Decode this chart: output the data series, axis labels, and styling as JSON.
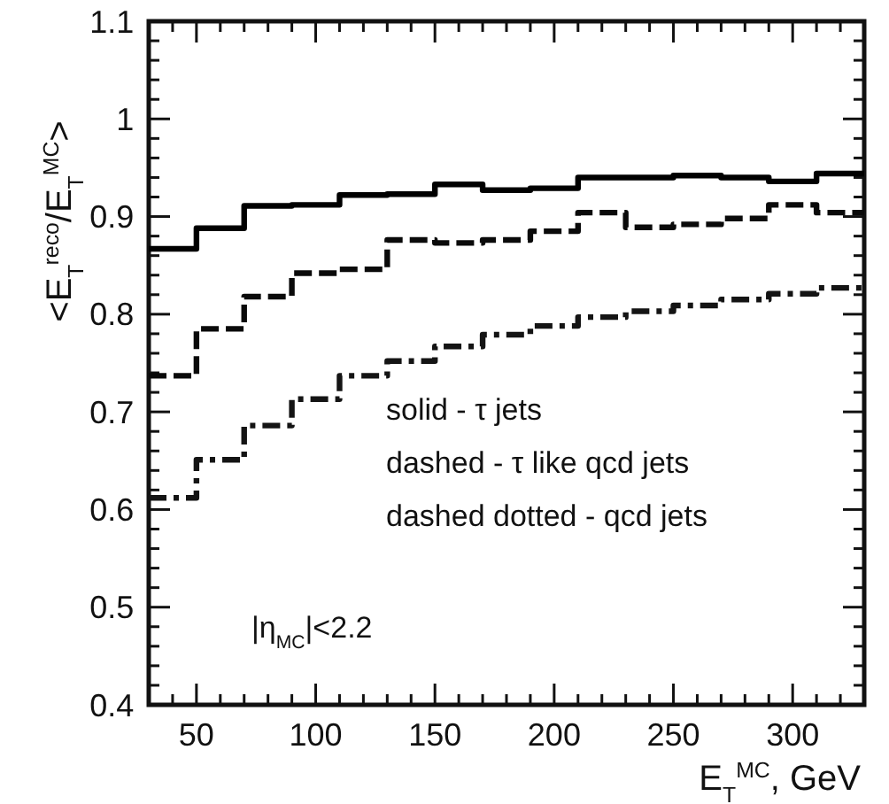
{
  "chart_data": {
    "type": "histogram",
    "xlabel": "E$_{T}$$^{MC}$, GeV",
    "ylabel": "<E$_{T}$$^{reco}$/E$_{T}$$^{MC}$>",
    "bins": [
      30,
      50,
      70,
      90,
      110,
      130,
      150,
      170,
      190,
      210,
      230,
      250,
      270,
      290,
      310,
      330
    ],
    "series": [
      {
        "color": "#000000",
        "line_style": "solid",
        "values": [
          0.867,
          0.888,
          0.911,
          0.912,
          0.922,
          0.923,
          0.933,
          0.927,
          0.929,
          0.94,
          0.94,
          0.942,
          0.94,
          0.936,
          0.944
        ]
      },
      {
        "color": "#0a0a0a",
        "line_style": "dashed",
        "values": [
          0.737,
          0.785,
          0.818,
          0.842,
          0.846,
          0.876,
          0.873,
          0.876,
          0.885,
          0.904,
          0.889,
          0.892,
          0.898,
          0.912,
          0.904
        ]
      },
      {
        "color": "#141414",
        "line_style": "dashdot",
        "values": [
          0.612,
          0.651,
          0.686,
          0.713,
          0.737,
          0.752,
          0.767,
          0.779,
          0.788,
          0.797,
          0.803,
          0.809,
          0.815,
          0.821,
          0.827
        ]
      }
    ],
    "xlim": [
      30,
      330
    ],
    "xticks": [
      {
        "value": 40,
        "label": null
      },
      50,
      {
        "value": 60,
        "label": null
      },
      {
        "value": 70,
        "label": null
      },
      {
        "value": 80,
        "label": null
      },
      {
        "value": 90,
        "label": null
      },
      100,
      {
        "value": 110,
        "label": null
      },
      {
        "value": 120,
        "label": null
      },
      {
        "value": 130,
        "label": null
      },
      {
        "value": 140,
        "label": null
      },
      150,
      {
        "value": 160,
        "label": null
      },
      {
        "value": 170,
        "label": null
      },
      {
        "value": 180,
        "label": null
      },
      {
        "value": 190,
        "label": null
      },
      200,
      {
        "value": 210,
        "label": null
      },
      {
        "value": 220,
        "label": null
      },
      {
        "value": 230,
        "label": null
      },
      {
        "value": 240,
        "label": null
      },
      250,
      {
        "value": 260,
        "label": null
      },
      {
        "value": 270,
        "label": null
      },
      {
        "value": 280,
        "label": null
      },
      {
        "value": 290,
        "label": null
      },
      300,
      {
        "value": 310,
        "label": null
      },
      {
        "value": 320,
        "label": null
      }
    ],
    "ylim": [
      0.4,
      1.1
    ],
    "yticks": [
      0.4,
      {
        "value": 0.42,
        "label": null
      },
      {
        "value": 0.44,
        "label": null
      },
      {
        "value": 0.46,
        "label": null
      },
      {
        "value": 0.48,
        "label": null
      },
      0.5,
      {
        "value": 0.52,
        "label": null
      },
      {
        "value": 0.54,
        "label": null
      },
      {
        "value": 0.56,
        "label": null
      },
      {
        "value": 0.58,
        "label": null
      },
      0.6,
      {
        "value": 0.62,
        "label": null
      },
      {
        "value": 0.64,
        "label": null
      },
      {
        "value": 0.66,
        "label": null
      },
      {
        "value": 0.68,
        "label": null
      },
      0.7,
      {
        "value": 0.72,
        "label": null
      },
      {
        "value": 0.74,
        "label": null
      },
      {
        "value": 0.76,
        "label": null
      },
      {
        "value": 0.78,
        "label": null
      },
      0.8,
      {
        "value": 0.82,
        "label": null
      },
      {
        "value": 0.84,
        "label": null
      },
      {
        "value": 0.86,
        "label": null
      },
      {
        "value": 0.88,
        "label": null
      },
      0.9,
      {
        "value": 0.92,
        "label": null
      },
      {
        "value": 0.94,
        "label": null
      },
      {
        "value": 0.96,
        "label": null
      },
      {
        "value": 0.98,
        "label": null
      },
      1,
      {
        "value": 1.02,
        "label": null
      },
      {
        "value": 1.04,
        "label": null
      },
      {
        "value": 1.06,
        "label": null
      },
      {
        "value": 1.08,
        "label": null
      },
      1.1
    ],
    "annotations": [
      "solid - τ jets",
      "dashed - τ like qcd jets",
      "dashed dotted - qcd jets",
      "|η$_{MC}$|<2.2"
    ]
  }
}
